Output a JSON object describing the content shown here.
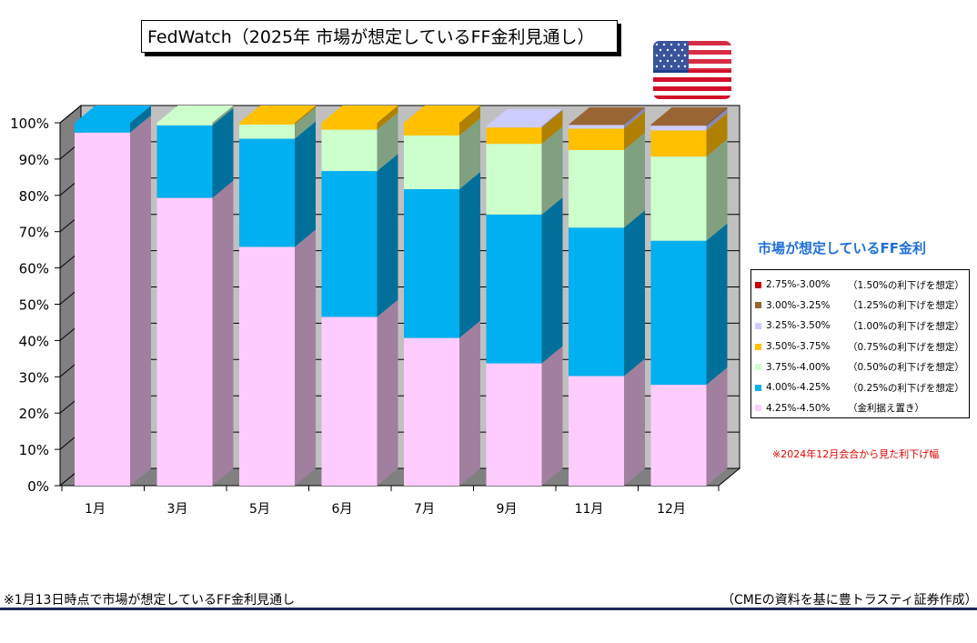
{
  "title": "FedWatch（2025年 市場が想定しているFF金利見通し）",
  "legend_title": "市場が想定しているFF金利",
  "note_right": "※2024年12月会合から見た利下げ幅",
  "footer_left": "※1月13日時点で市場が想定しているFF金利見通し",
  "footer_right": "（CMEの資料を基に豊トラスティ証券作成）",
  "flag_icon": "us-flag-icon",
  "chart_data": {
    "type": "bar",
    "stacked": true,
    "three_d": true,
    "categories": [
      "1月",
      "3月",
      "5月",
      "6月",
      "7月",
      "9月",
      "11月",
      "12月"
    ],
    "y_ticks": [
      "0%",
      "10%",
      "20%",
      "30%",
      "40%",
      "50%",
      "60%",
      "70%",
      "80%",
      "90%",
      "100%"
    ],
    "ylim": [
      0,
      100
    ],
    "series": [
      {
        "name": "4.25%-4.50%",
        "note": "（金利据え置き）",
        "color": "#ffccff",
        "side": "#a0809e",
        "values": [
          97.3,
          79.3,
          65.8,
          46.5,
          40.7,
          33.7,
          30.2,
          27.8
        ]
      },
      {
        "name": "4.00%-4.25%",
        "note": "（0.25%の利下げを想定）",
        "color": "#00b0f0",
        "side": "#00709a",
        "values": [
          2.7,
          20.0,
          29.8,
          40.2,
          41.0,
          41.0,
          40.9,
          39.7
        ]
      },
      {
        "name": "3.75%-4.00%",
        "note": "（0.50%の利下げを想定）",
        "color": "#ccffcc",
        "side": "#80a080",
        "values": [
          0.0,
          0.7,
          3.9,
          11.4,
          14.8,
          19.5,
          21.4,
          23.2
        ]
      },
      {
        "name": "3.50%-3.75%",
        "note": "（0.75%の利下げを想定）",
        "color": "#ffc000",
        "side": "#b08000",
        "values": [
          0.0,
          0.0,
          0.5,
          1.9,
          3.5,
          4.5,
          5.9,
          7.2
        ]
      },
      {
        "name": "3.25%-3.50%",
        "note": "（1.00%の利下げを想定）",
        "color": "#ccccff",
        "side": "#8888b0",
        "values": [
          0.0,
          0.0,
          0.0,
          0.0,
          0.0,
          0.3,
          1.0,
          1.3
        ]
      },
      {
        "name": "3.00%-3.25%",
        "note": "（1.25%の利下げを想定）",
        "color": "#996633",
        "side": "#664422",
        "values": [
          0.0,
          0.0,
          0.0,
          0.0,
          0.0,
          0.0,
          0.1,
          0.3
        ]
      },
      {
        "name": "2.75%-3.00%",
        "note": "（1.50%の利下げを想定）",
        "color": "#cc0000",
        "side": "#880000",
        "values": [
          0.0,
          0.0,
          0.0,
          0.0,
          0.0,
          0.0,
          0.0,
          0.0
        ]
      }
    ],
    "legend_order": [
      "2.75%-3.00%",
      "3.00%-3.25%",
      "3.25%-3.50%",
      "3.50%-3.75%",
      "3.75%-4.00%",
      "4.00%-4.25%",
      "4.25%-4.50%"
    ],
    "legend": "right",
    "grid": true
  }
}
